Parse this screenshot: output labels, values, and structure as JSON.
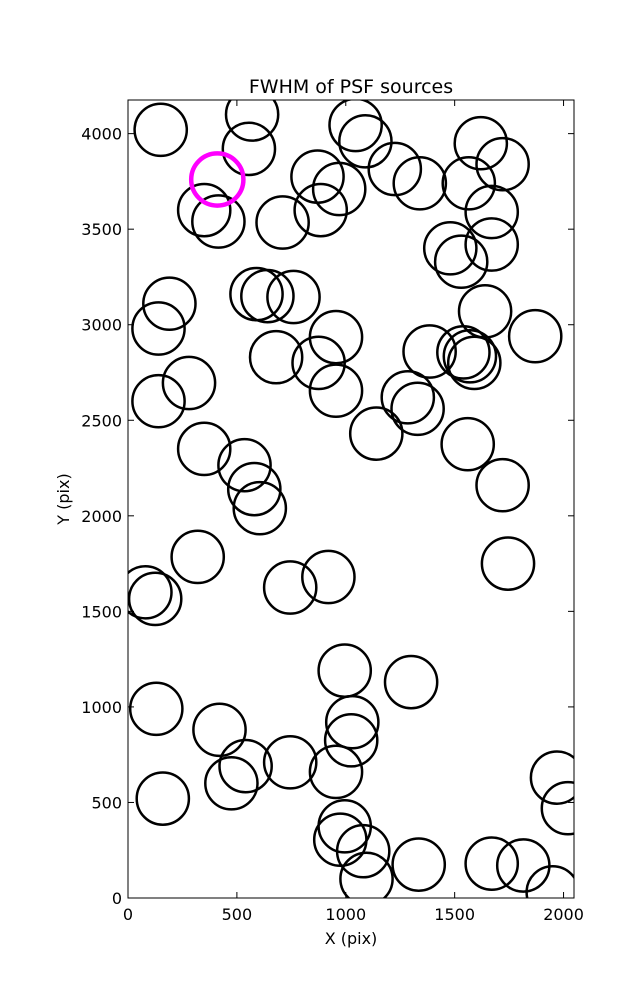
{
  "chart_data": {
    "type": "scatter",
    "title": "FWHM of PSF sources",
    "xlabel": "X (pix)",
    "ylabel": "Y (pix)",
    "xlim": [
      0,
      2048
    ],
    "ylim": [
      0,
      4176
    ],
    "xticks": [
      0,
      500,
      1000,
      1500,
      2000
    ],
    "yticks": [
      0,
      500,
      1000,
      1500,
      2000,
      2500,
      3000,
      3500,
      4000
    ],
    "grid": false,
    "marker": "open-circle",
    "marker_color": "#000000",
    "highlight_color": "#ff00ff",
    "circle_radius_data_x": 120,
    "series": [
      {
        "points": [
          [
            150,
            4020
          ],
          [
            570,
            4100
          ],
          [
            555,
            3920
          ],
          [
            1045,
            4045
          ],
          [
            1090,
            3960
          ],
          [
            1620,
            3950
          ],
          [
            1720,
            3840
          ],
          [
            1225,
            3815
          ],
          [
            1340,
            3740
          ],
          [
            1565,
            3740
          ],
          [
            870,
            3775
          ],
          [
            970,
            3710
          ],
          [
            885,
            3600
          ],
          [
            710,
            3535
          ],
          [
            350,
            3600
          ],
          [
            415,
            3540
          ],
          [
            1670,
            3590
          ],
          [
            1670,
            3420
          ],
          [
            1480,
            3400
          ],
          [
            1530,
            3330
          ],
          [
            190,
            3110
          ],
          [
            140,
            2980
          ],
          [
            590,
            3160
          ],
          [
            640,
            3150
          ],
          [
            760,
            3145
          ],
          [
            1640,
            3070
          ],
          [
            1870,
            2940
          ],
          [
            955,
            2935
          ],
          [
            1385,
            2860
          ],
          [
            1540,
            2855
          ],
          [
            1570,
            2835
          ],
          [
            1590,
            2800
          ],
          [
            680,
            2830
          ],
          [
            875,
            2800
          ],
          [
            280,
            2695
          ],
          [
            955,
            2655
          ],
          [
            140,
            2600
          ],
          [
            1285,
            2620
          ],
          [
            1330,
            2560
          ],
          [
            1140,
            2430
          ],
          [
            1560,
            2375
          ],
          [
            350,
            2350
          ],
          [
            535,
            2265
          ],
          [
            580,
            2140
          ],
          [
            605,
            2040
          ],
          [
            1720,
            2160
          ],
          [
            320,
            1785
          ],
          [
            1745,
            1750
          ],
          [
            80,
            1600
          ],
          [
            125,
            1565
          ],
          [
            745,
            1625
          ],
          [
            920,
            1680
          ],
          [
            995,
            1190
          ],
          [
            1300,
            1130
          ],
          [
            130,
            990
          ],
          [
            420,
            880
          ],
          [
            1030,
            920
          ],
          [
            1025,
            825
          ],
          [
            540,
            690
          ],
          [
            475,
            600
          ],
          [
            745,
            710
          ],
          [
            955,
            660
          ],
          [
            1970,
            630
          ],
          [
            2020,
            470
          ],
          [
            160,
            520
          ],
          [
            995,
            375
          ],
          [
            975,
            305
          ],
          [
            1080,
            245
          ],
          [
            1095,
            100
          ],
          [
            1335,
            175
          ],
          [
            1670,
            180
          ],
          [
            1815,
            170
          ],
          [
            1950,
            30
          ]
        ]
      }
    ],
    "highlight": [
      [
        410,
        3760
      ]
    ]
  }
}
